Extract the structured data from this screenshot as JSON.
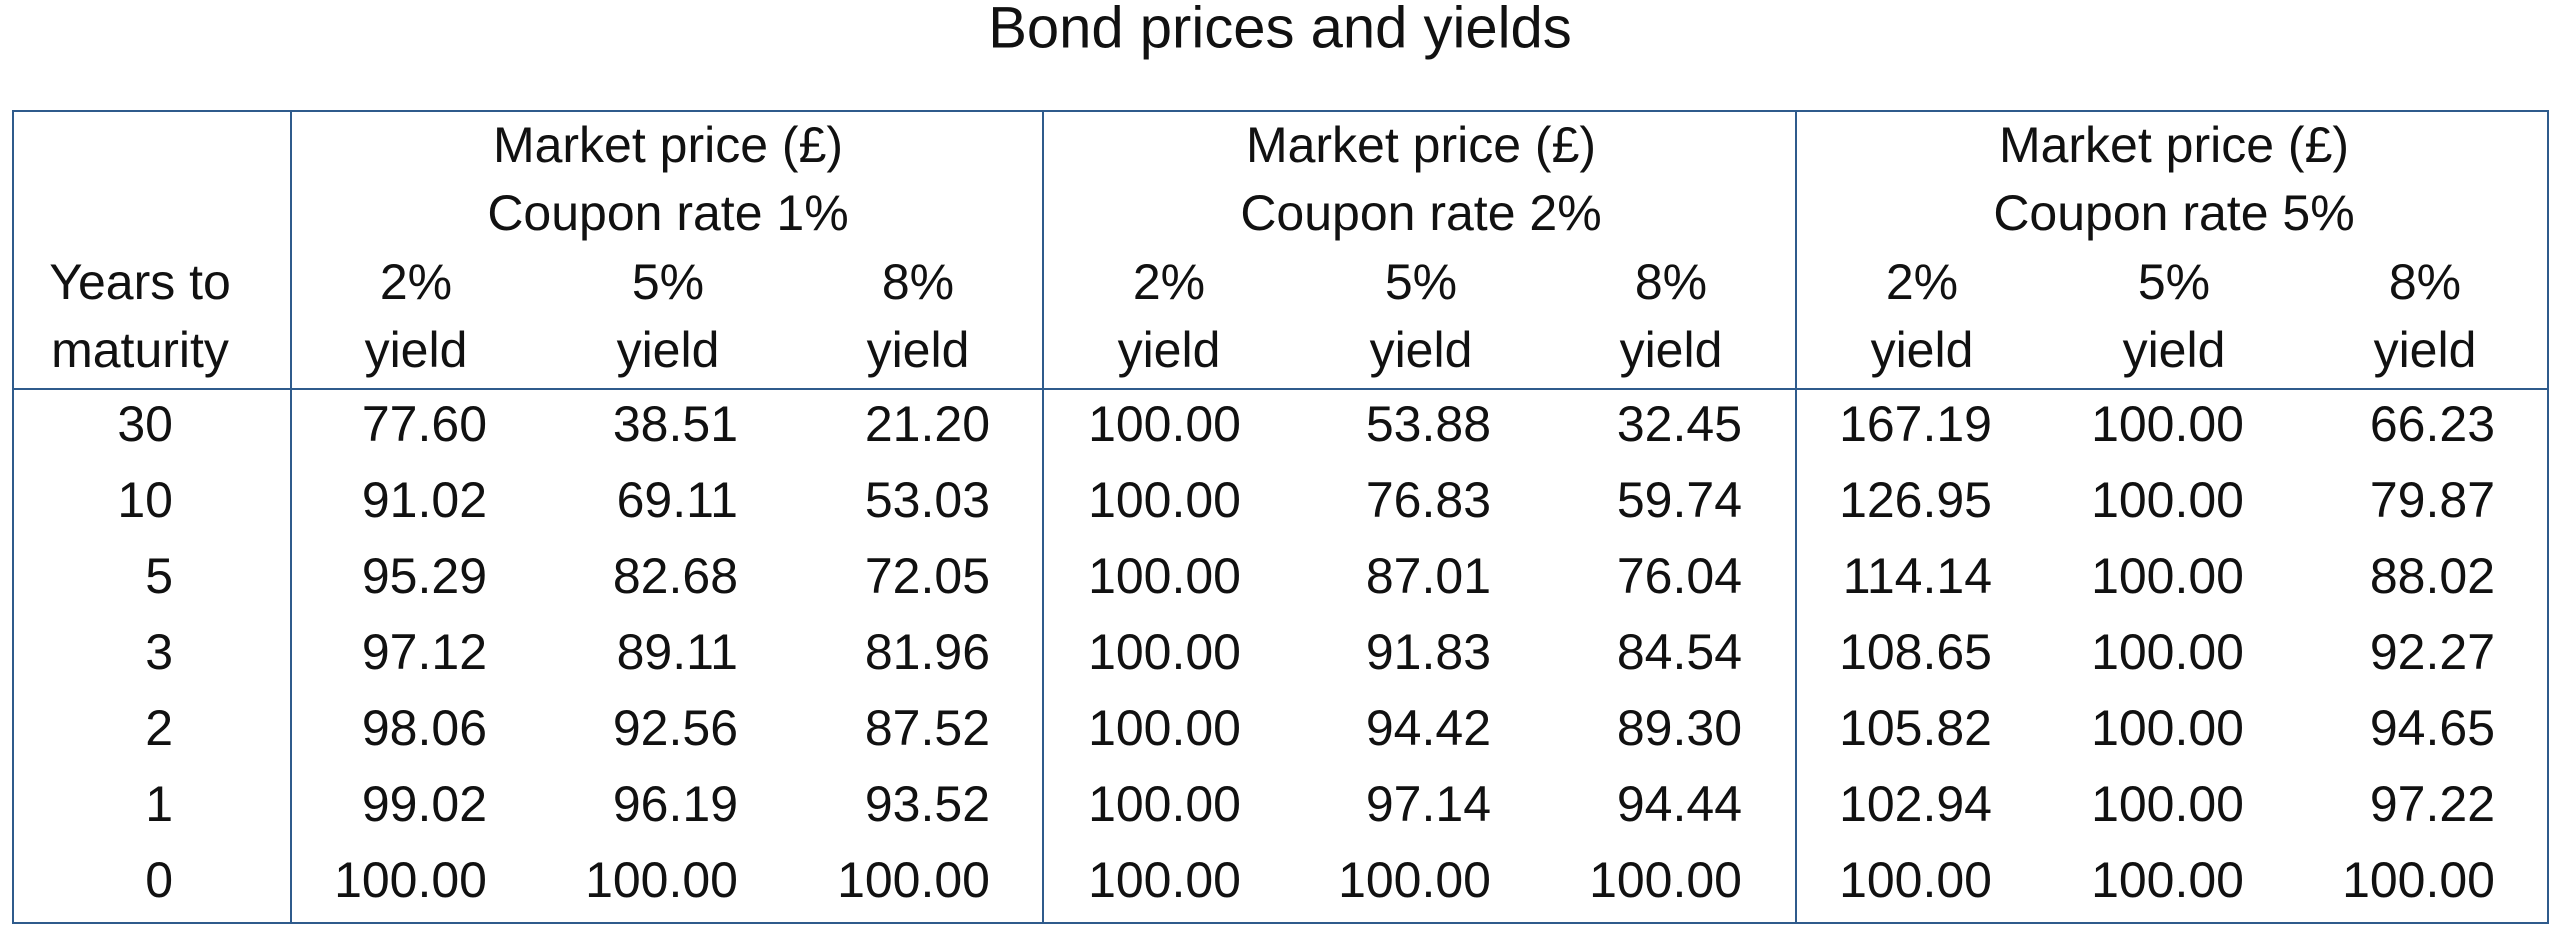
{
  "title": "Bond prices and yields",
  "table": {
    "corner": [
      "Years to",
      "maturity"
    ],
    "groups": [
      {
        "lines": [
          "Market price (£)",
          "Coupon rate 1%"
        ],
        "columns": [
          [
            "2%",
            "yield"
          ],
          [
            "5%",
            "yield"
          ],
          [
            "8%",
            "yield"
          ]
        ]
      },
      {
        "lines": [
          "Market price (£)",
          "Coupon rate 2%"
        ],
        "columns": [
          [
            "2%",
            "yield"
          ],
          [
            "5%",
            "yield"
          ],
          [
            "8%",
            "yield"
          ]
        ]
      },
      {
        "lines": [
          "Market price (£)",
          "Coupon rate 5%"
        ],
        "columns": [
          [
            "2%",
            "yield"
          ],
          [
            "5%",
            "yield"
          ],
          [
            "8%",
            "yield"
          ]
        ]
      }
    ],
    "rows": [
      {
        "years": "30",
        "cells": [
          "77.60",
          "38.51",
          "21.20",
          "100.00",
          "53.88",
          "32.45",
          "167.19",
          "100.00",
          "66.23"
        ]
      },
      {
        "years": "10",
        "cells": [
          "91.02",
          "69.11",
          "53.03",
          "100.00",
          "76.83",
          "59.74",
          "126.95",
          "100.00",
          "79.87"
        ]
      },
      {
        "years": "5",
        "cells": [
          "95.29",
          "82.68",
          "72.05",
          "100.00",
          "87.01",
          "76.04",
          "114.14",
          "100.00",
          "88.02"
        ]
      },
      {
        "years": "3",
        "cells": [
          "97.12",
          "89.11",
          "81.96",
          "100.00",
          "91.83",
          "84.54",
          "108.65",
          "100.00",
          "92.27"
        ]
      },
      {
        "years": "2",
        "cells": [
          "98.06",
          "92.56",
          "87.52",
          "100.00",
          "94.42",
          "89.30",
          "105.82",
          "100.00",
          "94.65"
        ]
      },
      {
        "years": "1",
        "cells": [
          "99.02",
          "96.19",
          "93.52",
          "100.00",
          "97.14",
          "94.44",
          "102.94",
          "100.00",
          "97.22"
        ]
      },
      {
        "years": "0",
        "cells": [
          "100.00",
          "100.00",
          "100.00",
          "100.00",
          "100.00",
          "100.00",
          "100.00",
          "100.00",
          "100.00"
        ]
      }
    ]
  }
}
